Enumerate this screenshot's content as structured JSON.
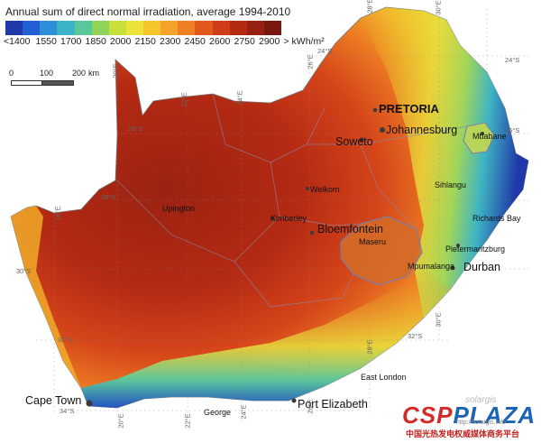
{
  "legend": {
    "title": "Annual sum of direct normal irradiation, average 1994-2010",
    "colors": [
      "#1f3aa8",
      "#2160d2",
      "#2f8ed9",
      "#3bb4c7",
      "#58c89a",
      "#8fd35b",
      "#c8de3b",
      "#ede23a",
      "#f6c52e",
      "#f4a32a",
      "#ee7f23",
      "#e2591d",
      "#cf3c17",
      "#b42a12",
      "#972012",
      "#7a1710"
    ],
    "ticks": [
      "<1400",
      "1550",
      "1700",
      "1850",
      "2000",
      "2150",
      "2300",
      "2450",
      "2600",
      "2750",
      "2900"
    ],
    "unit": "> kWh/m²"
  },
  "scale": {
    "labels": [
      "0",
      "100",
      "200"
    ],
    "unit": "km"
  },
  "places": {
    "pretoria": "PRETORIA",
    "johannesburg": "Johannesburg",
    "soweto": "Soweto",
    "mbabane": "Mbabane",
    "upington": "Upington",
    "welkom": "Welkom",
    "sihlangu": "Sihlangu",
    "kimberley": "Kimberley",
    "bloemfontein": "Bloemfontein",
    "richards_bay": "Richards Bay",
    "maseru": "Maseru",
    "pietermaritzburg": "Pietermaritzburg",
    "mpumalanga": "Mpumalanga",
    "durban": "Durban",
    "east_london": "East London",
    "cape_town": "Cape Town",
    "port_elizabeth": "Port Elizabeth",
    "george": "George"
  },
  "coords": {
    "e18": "18°E",
    "e20": "20°E",
    "e22": "22°E",
    "e24": "24°E",
    "e26": "26°E",
    "e28": "28°E",
    "e30": "30°E",
    "e30b": "30°E",
    "e28b": "28°E",
    "e26b": "26°E",
    "e22b": "22°E",
    "e24b": "24°E",
    "e20b": "20°E",
    "s24": "24°S",
    "s24b": "24°S",
    "s26": "26°S",
    "s26b": "26°S",
    "s28": "28°S",
    "s30": "30°S",
    "s32": "32°S",
    "s32b": "32°S",
    "s34": "34°S"
  },
  "brand": {
    "logo_csp": "CSP",
    "logo_plaza": "PLAZA",
    "subtitle": "中国光热发电权威媒体商务平台",
    "url": "http://solargis.info",
    "faint": "solargis"
  }
}
